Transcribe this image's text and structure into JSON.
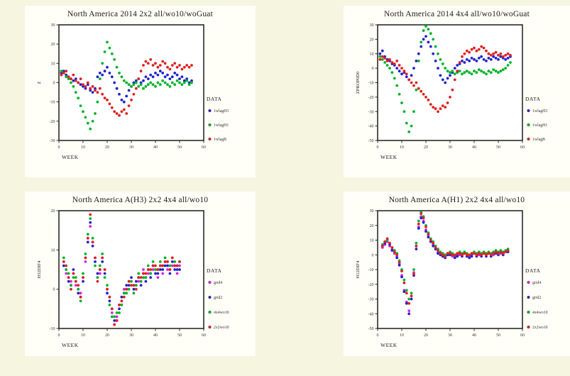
{
  "page": {
    "background_color": "#f6f5df",
    "panel_color": "#fffef7",
    "series_colors": {
      "blue": "#2222cc",
      "green": "#00b428",
      "red": "#e02020",
      "magenta": "#dd22dd"
    }
  },
  "chart_data": [
    {
      "type": "scatter",
      "title": "North America 2014 2x2 all/wo10/woGuat",
      "xlabel": "WEEK",
      "ylabel": "Z",
      "xlim": [
        0,
        60
      ],
      "ylim": [
        -30,
        30
      ],
      "xticks": [
        0,
        10,
        20,
        30,
        40,
        50,
        60
      ],
      "yticks": [
        30,
        20,
        10,
        0,
        -10,
        -20,
        -30
      ],
      "legend_title": "DATA",
      "legend_position": "right",
      "grid": false,
      "series": [
        {
          "name": "1wlagH3",
          "color": "#2222cc",
          "x_start": 1,
          "dx": 1,
          "y": [
            5,
            6,
            4,
            3,
            2,
            1,
            2,
            0,
            -1,
            -2,
            -3,
            -1,
            -4,
            -5,
            -3,
            3,
            5,
            4,
            6,
            8,
            5,
            3,
            0,
            -3,
            -6,
            -9,
            -10,
            -7,
            -4,
            -2,
            0,
            1,
            2,
            0,
            1,
            3,
            2,
            4,
            3,
            5,
            4,
            6,
            5,
            3,
            4,
            2,
            3,
            5,
            4,
            2,
            3,
            1,
            2,
            0,
            1
          ]
        },
        {
          "name": "1wlagH1",
          "color": "#00b428",
          "x_start": 1,
          "dx": 1,
          "y": [
            6,
            5,
            3,
            2,
            0,
            -2,
            -5,
            -8,
            -12,
            -15,
            -18,
            -21,
            -24,
            -20,
            -16,
            -10,
            2,
            10,
            16,
            21,
            18,
            15,
            12,
            8,
            5,
            3,
            1,
            0,
            -1,
            -2,
            -1,
            0,
            -2,
            -1,
            -3,
            -2,
            -1,
            0,
            -1,
            -2,
            0,
            -1,
            1,
            0,
            -1,
            -2,
            0,
            -1,
            1,
            0,
            -1,
            0,
            1,
            -1,
            0
          ]
        },
        {
          "name": "1wlagB",
          "color": "#e02020",
          "x_start": 1,
          "dx": 1,
          "y": [
            4,
            5,
            6,
            3,
            2,
            4,
            1,
            0,
            2,
            -1,
            -2,
            0,
            -3,
            -2,
            -4,
            -5,
            -3,
            -6,
            -8,
            -9,
            -11,
            -13,
            -15,
            -16,
            -17,
            -15,
            -14,
            -16,
            -12,
            -9,
            -6,
            -3,
            2,
            6,
            9,
            11,
            10,
            12,
            9,
            10,
            8,
            9,
            11,
            10,
            8,
            7,
            9,
            10,
            8,
            9,
            7,
            8,
            9,
            8,
            9
          ]
        }
      ]
    },
    {
      "type": "scatter",
      "title": "North America 2014 4x4 all/wo10/woGuat",
      "xlabel": "WEEK",
      "ylabel": "ZPROP0D0",
      "xlim": [
        0,
        60
      ],
      "ylim": [
        -50,
        30
      ],
      "xticks": [
        0,
        10,
        20,
        30,
        40,
        50,
        60
      ],
      "yticks": [
        30,
        20,
        10,
        0,
        -10,
        -20,
        -30,
        -40,
        -50
      ],
      "legend_title": "DATA",
      "legend_position": "right",
      "grid": false,
      "series": [
        {
          "name": "1wlagH3",
          "color": "#2222cc",
          "x_start": 1,
          "dx": 1,
          "y": [
            10,
            12,
            8,
            6,
            5,
            3,
            2,
            0,
            -2,
            -4,
            -3,
            -6,
            -8,
            -5,
            0,
            5,
            10,
            15,
            20,
            22,
            18,
            15,
            10,
            5,
            0,
            -5,
            -8,
            -10,
            -7,
            -5,
            -3,
            0,
            2,
            3,
            5,
            4,
            6,
            5,
            7,
            6,
            5,
            7,
            8,
            6,
            5,
            7,
            6,
            8,
            7,
            6,
            8,
            7,
            6,
            7,
            8
          ]
        },
        {
          "name": "1wlagH1",
          "color": "#00b428",
          "x_start": 1,
          "dx": 1,
          "y": [
            8,
            6,
            4,
            2,
            0,
            -3,
            -7,
            -12,
            -18,
            -24,
            -30,
            -38,
            -44,
            -40,
            -30,
            -15,
            5,
            18,
            26,
            29,
            27,
            24,
            20,
            15,
            10,
            6,
            3,
            0,
            -2,
            -3,
            -2,
            -4,
            -3,
            -2,
            -4,
            -3,
            -2,
            -3,
            -4,
            -2,
            -3,
            -1,
            -2,
            -3,
            -4,
            -2,
            -3,
            -1,
            -2,
            -3,
            -2,
            -1,
            0,
            2,
            4
          ]
        },
        {
          "name": "1wlagB",
          "color": "#e02020",
          "x_start": 1,
          "dx": 1,
          "y": [
            6,
            8,
            7,
            5,
            6,
            4,
            3,
            5,
            2,
            0,
            -2,
            -4,
            -8,
            -10,
            -12,
            -10,
            -14,
            -16,
            -18,
            -20,
            -22,
            -25,
            -27,
            -28,
            -30,
            -28,
            -26,
            -27,
            -24,
            -20,
            -15,
            -8,
            -2,
            4,
            8,
            10,
            12,
            11,
            13,
            14,
            12,
            13,
            15,
            14,
            12,
            10,
            9,
            10,
            11,
            9,
            10,
            8,
            9,
            10,
            9
          ]
        }
      ]
    },
    {
      "type": "scatter",
      "title": "North America A(H3) 2x2 4x4 all/wo10",
      "xlabel": "WEEK",
      "ylabel": "H32DIF4",
      "xlim": [
        0,
        60
      ],
      "ylim": [
        -10,
        20
      ],
      "xticks": [
        0,
        10,
        20,
        30,
        40,
        50,
        60
      ],
      "yticks": [
        20,
        10,
        0,
        -10
      ],
      "legend_title": "DATA",
      "legend_position": "right",
      "grid": false,
      "series": [
        {
          "name": "grid4",
          "color": "#dd22dd",
          "x_start": 2,
          "dx": 1,
          "y": [
            7,
            4,
            3,
            2,
            4,
            1,
            0,
            -1,
            3,
            7,
            13,
            16,
            12,
            8,
            3,
            4,
            8,
            5,
            0,
            -2,
            -6,
            -9,
            -7,
            -4,
            -3,
            0,
            0,
            2,
            2,
            1,
            1,
            2,
            2,
            5,
            3,
            4,
            4,
            5,
            5,
            3,
            6,
            4,
            7,
            5,
            5,
            6,
            6,
            4,
            6
          ]
        },
        {
          "name": "grid2",
          "color": "#2222cc",
          "x_start": 2,
          "dx": 1,
          "y": [
            6,
            5,
            2,
            1,
            5,
            2,
            -1,
            -2,
            2,
            8,
            12,
            17,
            11,
            7,
            4,
            5,
            7,
            4,
            -1,
            -3,
            -5,
            -8,
            -8,
            -5,
            -2,
            -1,
            1,
            1,
            3,
            0,
            2,
            3,
            1,
            4,
            2,
            5,
            3,
            6,
            4,
            4,
            5,
            5,
            6,
            6,
            4,
            7,
            5,
            5,
            5
          ]
        },
        {
          "name": "4x4wo10",
          "color": "#00b428",
          "x_start": 2,
          "dx": 1,
          "y": [
            8,
            5,
            4,
            1,
            3,
            3,
            0,
            -3,
            4,
            9,
            14,
            18,
            13,
            6,
            3,
            6,
            9,
            3,
            1,
            -4,
            -7,
            -7,
            -6,
            -6,
            -4,
            -1,
            -1,
            0,
            2,
            -1,
            1,
            4,
            2,
            3,
            3,
            6,
            4,
            7,
            5,
            5,
            7,
            6,
            8,
            7,
            6,
            8,
            7,
            6,
            7
          ]
        },
        {
          "name": "2x2wo10",
          "color": "#e02020",
          "x_start": 2,
          "dx": 1,
          "y": [
            7,
            6,
            3,
            0,
            4,
            2,
            1,
            -2,
            3,
            8,
            13,
            19,
            12,
            8,
            2,
            5,
            8,
            5,
            0,
            -2,
            -5,
            -9,
            -8,
            -4,
            -3,
            -2,
            0,
            2,
            1,
            1,
            0,
            3,
            3,
            4,
            4,
            5,
            5,
            6,
            6,
            5,
            6,
            6,
            7,
            7,
            5,
            8,
            6,
            6,
            7
          ]
        }
      ]
    },
    {
      "type": "scatter",
      "title": "North America A(H1) 2x2 4x4 all/wo10",
      "xlabel": "WEEK",
      "ylabel": "H12DIF4",
      "xlim": [
        0,
        60
      ],
      "ylim": [
        -50,
        30
      ],
      "xticks": [
        0,
        10,
        20,
        30,
        40,
        50,
        60
      ],
      "yticks": [
        30,
        20,
        10,
        0,
        -10,
        -20,
        -30,
        -40,
        -50
      ],
      "legend_title": "DATA",
      "legend_position": "right",
      "grid": false,
      "series": [
        {
          "name": "grid4",
          "color": "#dd22dd",
          "x_start": 2,
          "dx": 1,
          "y": [
            5,
            7,
            9,
            6,
            4,
            1,
            -1,
            -6,
            -14,
            -24,
            -32,
            -38,
            -28,
            -12,
            6,
            19,
            26,
            23,
            17,
            13,
            9,
            7,
            4,
            2,
            0,
            -1,
            -1,
            0,
            1,
            -1,
            -1,
            0,
            0,
            0,
            1,
            -1,
            -1,
            0,
            1,
            0,
            0,
            0,
            1,
            0,
            1,
            0,
            0,
            2,
            1,
            1,
            1,
            2,
            3
          ]
        },
        {
          "name": "grid2",
          "color": "#2222cc",
          "x_start": 2,
          "dx": 1,
          "y": [
            6,
            8,
            10,
            7,
            3,
            2,
            -2,
            -7,
            -15,
            -25,
            -33,
            -40,
            -30,
            -14,
            4,
            18,
            25,
            22,
            16,
            12,
            9,
            6,
            4,
            1,
            0,
            -1,
            -2,
            0,
            0,
            0,
            -2,
            -1,
            1,
            -1,
            1,
            -1,
            -2,
            -1,
            1,
            -1,
            1,
            -1,
            1,
            -1,
            1,
            -1,
            1,
            1,
            0,
            2,
            0,
            2,
            2
          ]
        },
        {
          "name": "4x4wo10",
          "color": "#00b428",
          "x_start": 2,
          "dx": 1,
          "y": [
            7,
            9,
            10,
            8,
            5,
            3,
            1,
            -4,
            -10,
            -17,
            -24,
            -30,
            -26,
            -10,
            8,
            23,
            29,
            26,
            20,
            15,
            11,
            9,
            6,
            4,
            2,
            1,
            0,
            1,
            2,
            1,
            0,
            1,
            2,
            1,
            2,
            1,
            0,
            1,
            2,
            1,
            2,
            1,
            2,
            1,
            2,
            1,
            2,
            3,
            2,
            3,
            2,
            3,
            4
          ]
        },
        {
          "name": "2x2wo10",
          "color": "#e02020",
          "x_start": 2,
          "dx": 1,
          "y": [
            6,
            9,
            11,
            8,
            5,
            2,
            0,
            -5,
            -11,
            -19,
            -26,
            -33,
            -28,
            -13,
            6,
            21,
            28,
            25,
            19,
            14,
            10,
            8,
            5,
            3,
            1,
            0,
            -1,
            1,
            1,
            0,
            0,
            1,
            1,
            0,
            1,
            0,
            0,
            1,
            1,
            0,
            1,
            0,
            1,
            0,
            1,
            0,
            1,
            2,
            1,
            2,
            1,
            2,
            3
          ]
        }
      ]
    }
  ]
}
